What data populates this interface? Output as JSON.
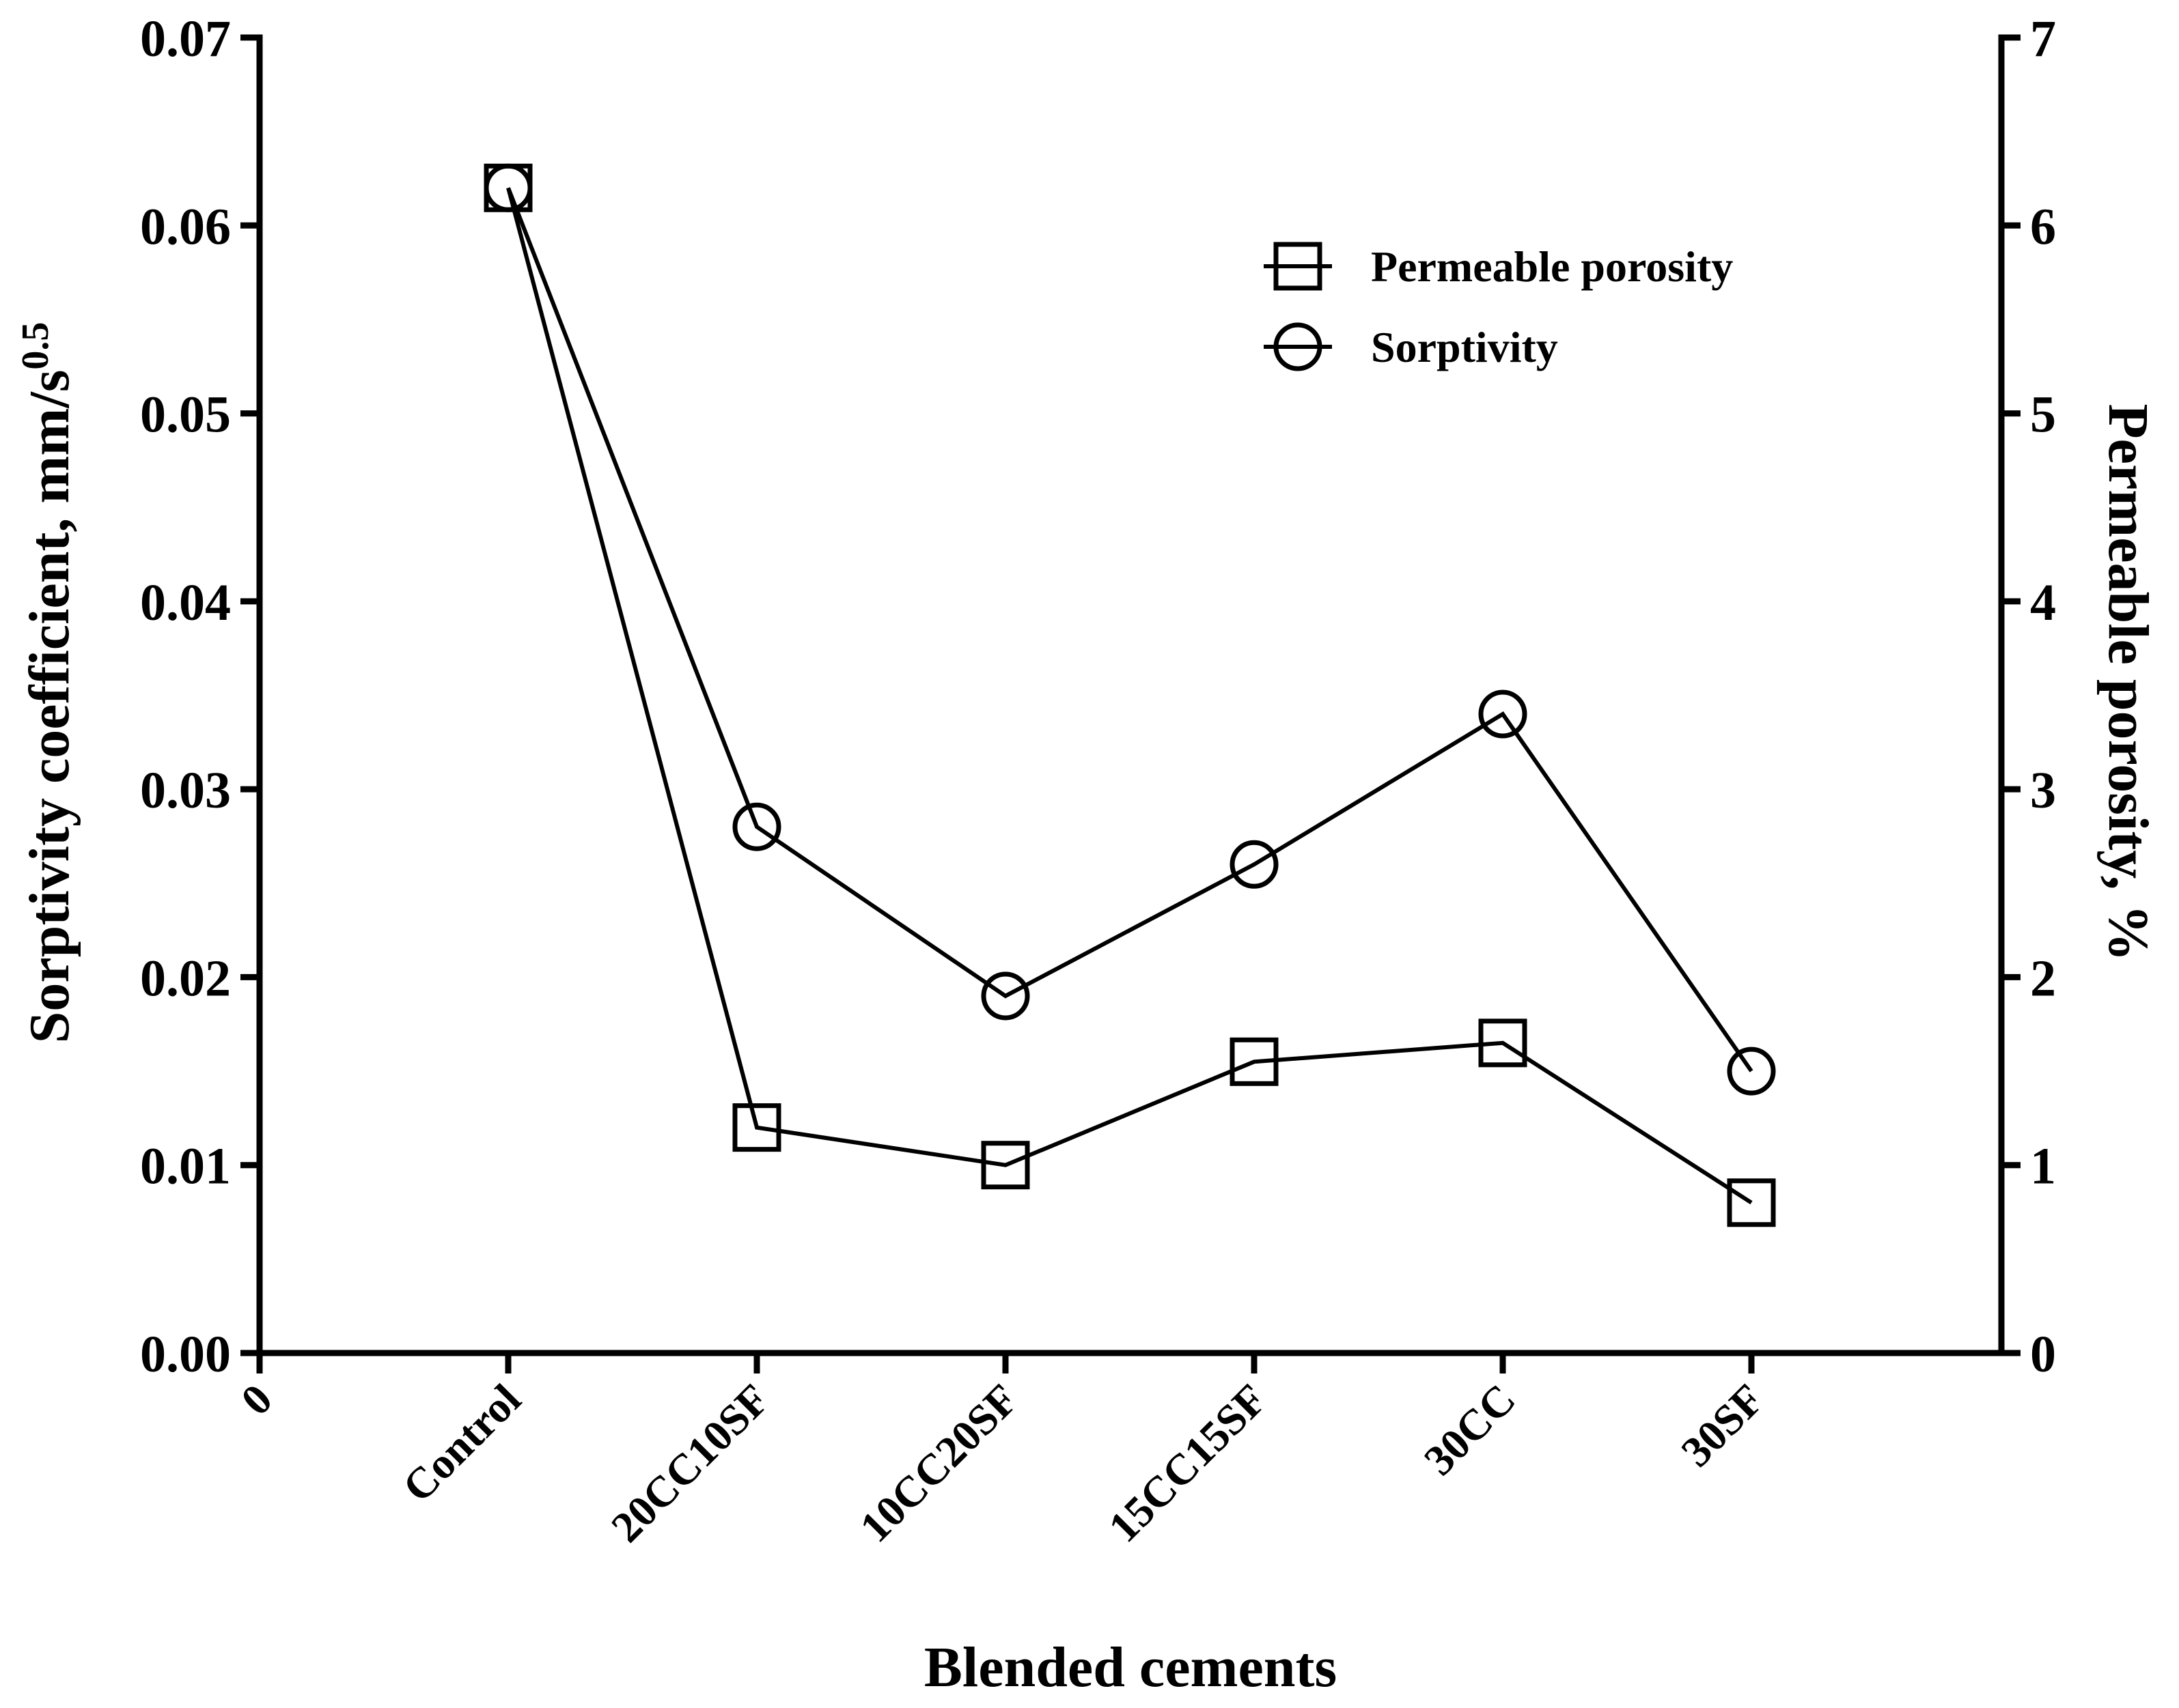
{
  "chart_data": {
    "type": "line",
    "title": "",
    "xlabel": "Blended cements",
    "ylabel_left": "Sorptivity coefficient, mm/s",
    "ylabel_left_sup": "0.5",
    "ylabel_right": "Permeable porosity, %",
    "x_origin_label": "0",
    "categories": [
      "Control",
      "20CC10SF",
      "10CC20SF",
      "15CC15SF",
      "30CC",
      "30SF"
    ],
    "y_left": {
      "range": [
        0,
        0.07
      ],
      "ticks": [
        0,
        0.01,
        0.02,
        0.03,
        0.04,
        0.05,
        0.06,
        0.07
      ],
      "tick_labels": [
        "0.00",
        "0.01",
        "0.02",
        "0.03",
        "0.04",
        "0.05",
        "0.06",
        "0.07"
      ]
    },
    "y_right": {
      "range": [
        0,
        7
      ],
      "ticks": [
        0,
        1,
        2,
        3,
        4,
        5,
        6,
        7
      ],
      "tick_labels": [
        "0",
        "1",
        "2",
        "3",
        "4",
        "5",
        "6",
        "7"
      ]
    },
    "series": [
      {
        "name": "Permeable porosity",
        "axis": "right",
        "marker": "square",
        "values": [
          6.2,
          1.2,
          1.0,
          1.55,
          1.65,
          0.8
        ]
      },
      {
        "name": "Sorptivity",
        "axis": "left",
        "marker": "circle",
        "values": [
          0.062,
          0.028,
          0.019,
          0.026,
          0.034,
          0.015
        ]
      }
    ],
    "legend_position": "top-right",
    "colors": {
      "line": "#000000",
      "background": "#ffffff"
    }
  }
}
